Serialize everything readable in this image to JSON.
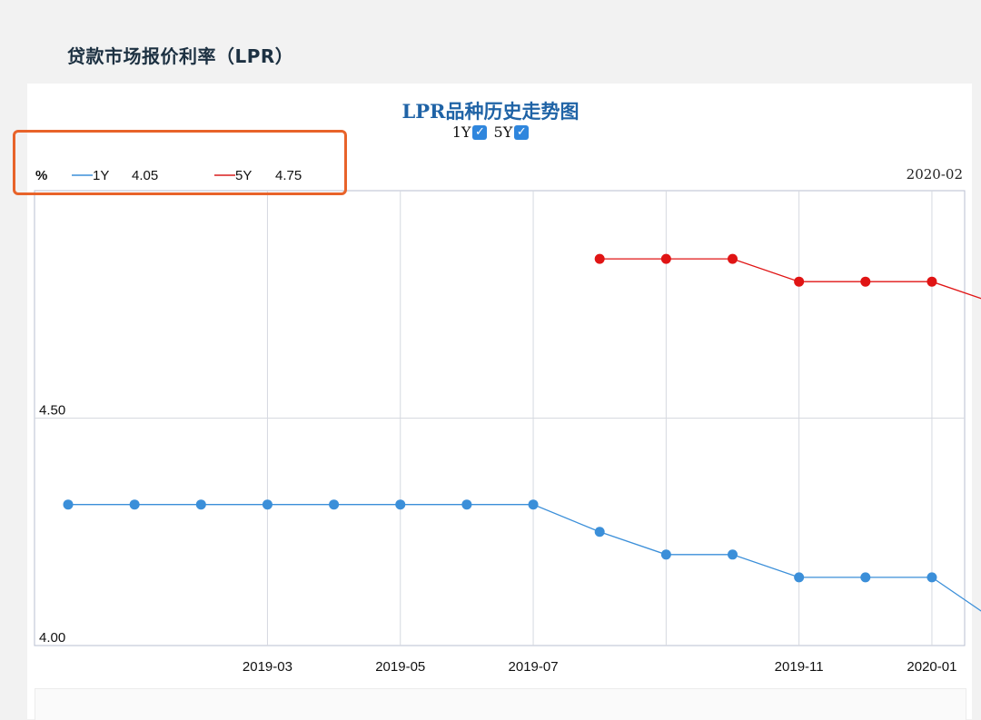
{
  "page": {
    "title": "贷款市场报价利率（LPR）"
  },
  "toggles": {
    "label_1y": "1Y",
    "label_5y": "5Y",
    "check_glyph": "✓"
  },
  "tooltip": {
    "unit": "%",
    "date": "2020-02",
    "items": [
      {
        "name": "1Y",
        "value": "4.05",
        "color": "#3b8fd9"
      },
      {
        "name": "5Y",
        "value": "4.75",
        "color": "#d91e1e"
      }
    ]
  },
  "colors": {
    "accent_highlight": "#e8632a",
    "series_1y": "#3b8fd9",
    "series_5y": "#e01414"
  },
  "chart_data": {
    "type": "line",
    "title": "LPR品种历史走势图",
    "xlabel": "",
    "ylabel": "%",
    "x": [
      "2018-12",
      "2019-01",
      "2019-02",
      "2019-03",
      "2019-04",
      "2019-05",
      "2019-06",
      "2019-07",
      "2019-08",
      "2019-09",
      "2019-10",
      "2019-11",
      "2019-12",
      "2020-01",
      "2020-02"
    ],
    "x_tick_labels": [
      "2019-03",
      "2019-05",
      "2019-07",
      "2019-11",
      "2020-01"
    ],
    "y_tick_labels": [
      "4.50",
      "4.00"
    ],
    "ylim": [
      4.0,
      5.0
    ],
    "grid": true,
    "series": [
      {
        "name": "1Y",
        "values": [
          4.31,
          4.31,
          4.31,
          4.31,
          4.31,
          4.31,
          4.31,
          4.31,
          4.25,
          4.2,
          4.2,
          4.15,
          4.15,
          4.15,
          4.05
        ]
      },
      {
        "name": "5Y",
        "values": [
          null,
          null,
          null,
          null,
          null,
          null,
          null,
          null,
          4.85,
          4.85,
          4.85,
          4.8,
          4.8,
          4.8,
          4.75
        ]
      }
    ]
  }
}
